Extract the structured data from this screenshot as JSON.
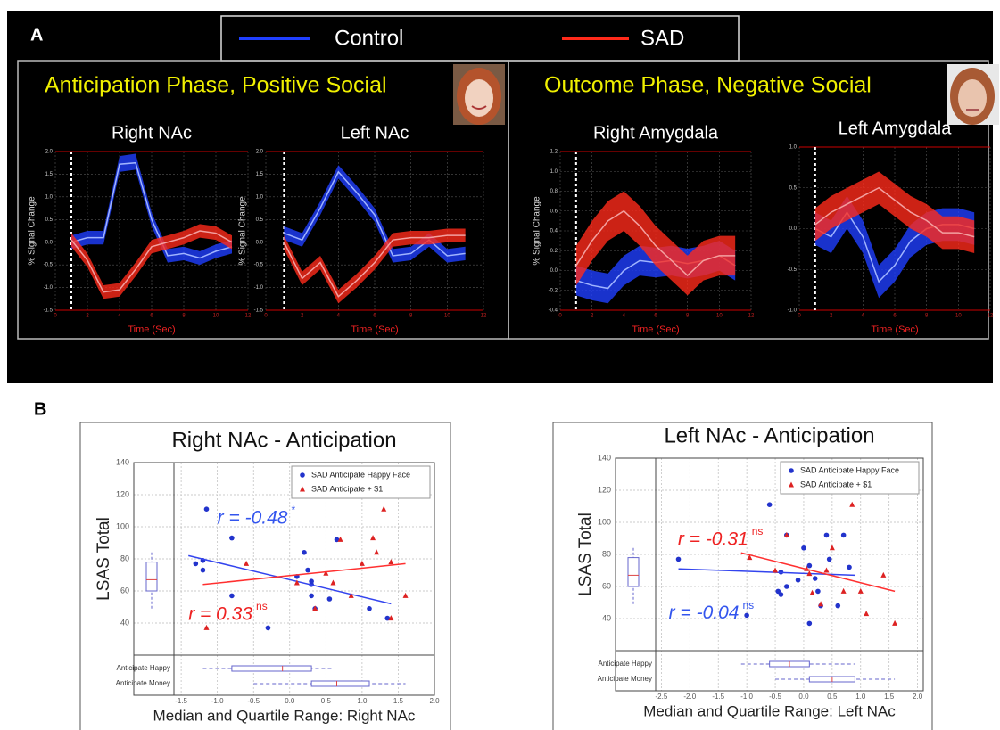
{
  "panel_labels": [
    "A",
    "B"
  ],
  "legend": [
    {
      "name": "Control",
      "color": "#1f3fff"
    },
    {
      "name": "SAD",
      "color": "#ff2a1a"
    }
  ],
  "group_titles": [
    "Anticipation Phase, Positive Social",
    "Outcome Phase, Negative Social"
  ],
  "chart_data": [
    {
      "type": "line",
      "title": "Right NAc",
      "xlabel": "Time (Sec)",
      "ylabel": "% Signal Change",
      "x": [
        1,
        2,
        3,
        4,
        5,
        6,
        7,
        8,
        9,
        10,
        11
      ],
      "xlim": [
        0,
        12
      ],
      "xticks": [
        0,
        2,
        4,
        6,
        8,
        10,
        12
      ],
      "ylim": [
        -1.5,
        2
      ],
      "yticks": [
        -1.5,
        {
          "value": -1,
          "label": "-1.0"
        },
        -0.5,
        {
          "value": 0,
          "label": "0.0"
        },
        0.5,
        {
          "value": 1,
          "label": "1.0"
        },
        1.5,
        {
          "value": 2,
          "label": "2.0"
        }
      ],
      "series": [
        {
          "color": "#1f3fff",
          "values": [
            0.0,
            0.1,
            0.1,
            1.72,
            1.75,
            0.5,
            -0.3,
            -0.25,
            -0.35,
            -0.2,
            -0.1
          ],
          "lower": [
            -0.15,
            -0.05,
            -0.05,
            1.55,
            1.6,
            0.35,
            -0.45,
            -0.4,
            -0.5,
            -0.35,
            -0.25
          ],
          "upper": [
            0.15,
            0.25,
            0.25,
            1.9,
            1.95,
            0.65,
            -0.15,
            -0.1,
            -0.2,
            -0.05,
            0.05
          ]
        },
        {
          "color": "#ff2a1a",
          "values": [
            0.05,
            -0.4,
            -1.1,
            -1.05,
            -0.6,
            -0.1,
            0.0,
            0.1,
            0.25,
            0.2,
            0.0
          ],
          "lower": [
            -0.1,
            -0.55,
            -1.25,
            -1.2,
            -0.75,
            -0.25,
            -0.15,
            -0.05,
            0.1,
            0.05,
            -0.15
          ],
          "upper": [
            0.2,
            -0.25,
            -0.95,
            -0.9,
            -0.45,
            0.05,
            0.15,
            0.25,
            0.4,
            0.35,
            0.15
          ]
        }
      ]
    },
    {
      "type": "line",
      "title": "Left NAc",
      "xlabel": "Time (Sec)",
      "ylabel": "% Signal Change",
      "x": [
        1,
        2,
        3,
        4,
        5,
        6,
        7,
        8,
        9,
        10,
        11
      ],
      "xlim": [
        0,
        12
      ],
      "xticks": [
        0,
        2,
        4,
        6,
        8,
        10,
        12
      ],
      "ylim": [
        -1.5,
        2
      ],
      "yticks": [
        -1.5,
        {
          "value": -1,
          "label": "-1.0"
        },
        -0.5,
        {
          "value": 0,
          "label": "0.0"
        },
        0.5,
        {
          "value": 1,
          "label": "1.0"
        },
        1.5,
        {
          "value": 2,
          "label": "2.0"
        }
      ],
      "series": [
        {
          "color": "#1f3fff",
          "values": [
            0.2,
            0.05,
            0.75,
            1.55,
            1.1,
            0.6,
            -0.3,
            -0.25,
            0.05,
            -0.3,
            -0.25
          ],
          "lower": [
            0.05,
            -0.1,
            0.6,
            1.4,
            0.95,
            0.45,
            -0.45,
            -0.4,
            -0.1,
            -0.45,
            -0.4
          ],
          "upper": [
            0.35,
            0.2,
            0.9,
            1.7,
            1.25,
            0.75,
            -0.15,
            -0.1,
            0.2,
            -0.15,
            -0.1
          ]
        },
        {
          "color": "#ff2a1a",
          "values": [
            0.0,
            -0.8,
            -0.45,
            -1.2,
            -0.85,
            -0.45,
            0.05,
            0.1,
            0.1,
            0.15,
            0.15
          ],
          "lower": [
            -0.15,
            -0.95,
            -0.6,
            -1.35,
            -1.0,
            -0.6,
            -0.1,
            -0.05,
            -0.05,
            0.0,
            0.0
          ],
          "upper": [
            0.15,
            -0.65,
            -0.3,
            -1.05,
            -0.7,
            -0.3,
            0.2,
            0.25,
            0.25,
            0.3,
            0.3
          ]
        }
      ]
    },
    {
      "type": "line",
      "title": "Right Amygdala",
      "xlabel": "Time (Sec)",
      "ylabel": "% Signal Change",
      "x": [
        1,
        2,
        3,
        4,
        5,
        6,
        7,
        8,
        9,
        10,
        11
      ],
      "xlim": [
        0,
        12
      ],
      "xticks": [
        0,
        2,
        4,
        6,
        8,
        10,
        12
      ],
      "ylim": [
        -0.4,
        1.2
      ],
      "yticks": [
        -0.4,
        -0.2,
        {
          "value": 0,
          "label": "0.0"
        },
        0.2,
        0.4,
        0.6,
        0.8,
        {
          "value": 1,
          "label": "1.0"
        },
        1.2
      ],
      "series": [
        {
          "color": "#1f3fff",
          "values": [
            -0.1,
            -0.15,
            -0.18,
            0.0,
            0.1,
            0.08,
            0.1,
            0.07,
            0.1,
            0.15,
            0.05
          ],
          "lower": [
            -0.25,
            -0.3,
            -0.33,
            -0.15,
            -0.05,
            -0.07,
            -0.05,
            -0.08,
            -0.05,
            0.0,
            -0.1
          ],
          "upper": [
            0.05,
            0.0,
            -0.03,
            0.15,
            0.25,
            0.23,
            0.25,
            0.22,
            0.25,
            0.3,
            0.2
          ]
        },
        {
          "color": "#ff2a1a",
          "values": [
            0.05,
            0.3,
            0.5,
            0.6,
            0.45,
            0.25,
            0.1,
            -0.05,
            0.1,
            0.15,
            0.15
          ],
          "lower": [
            -0.15,
            0.1,
            0.3,
            0.4,
            0.25,
            0.05,
            -0.1,
            -0.25,
            -0.1,
            -0.05,
            -0.05
          ],
          "upper": [
            0.25,
            0.5,
            0.7,
            0.8,
            0.65,
            0.45,
            0.3,
            0.15,
            0.3,
            0.35,
            0.35
          ]
        }
      ]
    },
    {
      "type": "line",
      "title": "Left Amygdala",
      "xlabel": "Time (Sec)",
      "x": [
        1,
        2,
        3,
        4,
        5,
        6,
        7,
        8,
        9,
        10,
        11
      ],
      "xlim": [
        0,
        12
      ],
      "xticks": [
        0,
        2,
        4,
        6,
        8,
        10,
        12
      ],
      "ylim": [
        -1,
        1
      ],
      "yticks": [
        {
          "value": -1,
          "label": "-1.0"
        },
        -0.5,
        {
          "value": 0,
          "label": "0.0"
        },
        0.5,
        {
          "value": 1,
          "label": "1.0"
        }
      ],
      "series": [
        {
          "color": "#1f3fff",
          "values": [
            0.0,
            -0.1,
            0.2,
            -0.1,
            -0.65,
            -0.45,
            -0.15,
            0.0,
            0.05,
            0.05,
            0.0
          ],
          "lower": [
            -0.2,
            -0.3,
            0.0,
            -0.3,
            -0.85,
            -0.65,
            -0.35,
            -0.2,
            -0.15,
            -0.15,
            -0.2
          ],
          "upper": [
            0.2,
            0.1,
            0.4,
            0.1,
            -0.45,
            -0.25,
            0.05,
            0.2,
            0.25,
            0.25,
            0.2
          ]
        },
        {
          "color": "#ff2a1a",
          "values": [
            0.05,
            0.2,
            0.3,
            0.4,
            0.5,
            0.35,
            0.2,
            0.1,
            -0.05,
            -0.05,
            -0.1
          ],
          "lower": [
            -0.15,
            0.0,
            0.1,
            0.2,
            0.3,
            0.15,
            0.0,
            -0.1,
            -0.25,
            -0.25,
            -0.3
          ],
          "upper": [
            0.25,
            0.4,
            0.5,
            0.6,
            0.7,
            0.55,
            0.4,
            0.3,
            0.15,
            0.15,
            0.1
          ]
        }
      ]
    },
    {
      "type": "scatter",
      "title": "Right NAc - Anticipation",
      "xlabel": "Median and Quartile Range: Right NAc",
      "ylabel": "LSAS Total",
      "xlim": [
        -1.6,
        2.0
      ],
      "xticks": [
        -1.5,
        {
          "value": -1,
          "label": "-1.0"
        },
        -0.5,
        {
          "value": 0,
          "label": "0.0"
        },
        0.5,
        {
          "value": 1,
          "label": "1.0"
        },
        1.5,
        {
          "value": 2,
          "label": "2.0"
        }
      ],
      "ylim": [
        20,
        140
      ],
      "yticks": [
        40,
        60,
        80,
        100,
        120,
        140
      ],
      "grid": true,
      "legend": "upper right",
      "series": [
        {
          "name": "SAD Anticipate Happy Face",
          "color": "#2233cc",
          "marker": "circle",
          "x": [
            -1.3,
            -1.15,
            -1.2,
            -1.2,
            -0.8,
            -0.8,
            -0.3,
            0.1,
            0.2,
            0.25,
            0.3,
            0.3,
            0.35,
            0.3,
            0.55,
            0.65,
            1.1,
            1.35
          ],
          "y": [
            77,
            111,
            79,
            73,
            93,
            57,
            37,
            69,
            84,
            73,
            57,
            64,
            49,
            66,
            55,
            92,
            49,
            43
          ],
          "fit": {
            "x": [
              -1.4,
              1.4
            ],
            "y": [
              82,
              52
            ]
          },
          "box_label": "Anticipate Happy",
          "box": {
            "whislo": -1.2,
            "q1": -0.8,
            "med": -0.1,
            "q3": 0.3,
            "whishi": 0.6
          }
        },
        {
          "name": "SAD Anticipate + $1",
          "color": "#dd2222",
          "marker": "triangle",
          "x": [
            -1.15,
            -0.6,
            0.1,
            0.35,
            0.5,
            0.6,
            0.7,
            0.85,
            1.0,
            1.15,
            1.2,
            1.3,
            1.4,
            1.4,
            1.6
          ],
          "y": [
            37,
            77,
            65,
            49,
            71,
            65,
            92,
            57,
            77,
            93,
            84,
            111,
            43,
            78,
            57
          ],
          "fit": {
            "x": [
              -1.2,
              1.6
            ],
            "y": [
              64,
              77
            ]
          },
          "box_label": "Anticipate Money",
          "box": {
            "whislo": -0.5,
            "q1": 0.3,
            "med": 0.65,
            "q3": 1.1,
            "whishi": 1.6
          }
        }
      ],
      "y_box": {
        "whislo": 49,
        "q1": 60,
        "med": 67,
        "q3": 78,
        "whishi": 84
      },
      "annotations": [
        {
          "text": "r = -0.48",
          "sup": "*",
          "color": "#3355ee"
        },
        {
          "text": "r = 0.33",
          "sup": "ns",
          "color": "#ee2222"
        }
      ]
    },
    {
      "type": "scatter",
      "title": "Left NAc - Anticipation",
      "xlabel": "Median and Quartile Range: Left NAc",
      "ylabel": "LSAS Total",
      "xlim": [
        -2.6,
        2.1
      ],
      "xticks": [
        -2.5,
        {
          "value": -2,
          "label": "-2.0"
        },
        -1.5,
        {
          "value": -1,
          "label": "-1.0"
        },
        -0.5,
        {
          "value": 0,
          "label": "0.0"
        },
        0.5,
        {
          "value": 1,
          "label": "1.0"
        },
        1.5,
        {
          "value": 2,
          "label": "2.0"
        }
      ],
      "ylim": [
        20,
        140
      ],
      "yticks": [
        40,
        60,
        80,
        100,
        120,
        140
      ],
      "grid": true,
      "legend": "upper right",
      "series": [
        {
          "name": "SAD Anticipate Happy Face",
          "color": "#2233cc",
          "marker": "circle",
          "x": [
            -2.2,
            -1.0,
            -0.6,
            -0.45,
            -0.4,
            -0.4,
            -0.3,
            -0.3,
            -0.1,
            0.0,
            0.1,
            0.1,
            0.2,
            0.25,
            0.3,
            0.4,
            0.45,
            0.6,
            0.7,
            0.8
          ],
          "y": [
            77,
            42,
            111,
            57,
            69,
            55,
            92,
            60,
            64,
            84,
            37,
            73,
            65,
            57,
            48,
            92,
            77,
            48,
            92,
            72
          ],
          "fit": {
            "x": [
              -2.2,
              0.9
            ],
            "y": [
              71,
              67
            ]
          },
          "box_label": "Anticipate Happy",
          "box": {
            "whislo": -1.1,
            "q1": -0.6,
            "med": -0.25,
            "q3": 0.1,
            "whishi": 0.9
          }
        },
        {
          "name": "SAD Anticipate + $1",
          "color": "#dd2222",
          "marker": "triangle",
          "x": [
            -0.95,
            -0.5,
            -0.3,
            0.05,
            0.1,
            0.15,
            0.3,
            0.4,
            0.5,
            0.7,
            0.85,
            1.0,
            1.1,
            1.4,
            1.6
          ],
          "y": [
            78,
            70,
            92,
            71,
            68,
            56,
            49,
            70,
            84,
            57,
            111,
            57,
            43,
            67,
            37
          ],
          "fit": {
            "x": [
              -1.1,
              1.6
            ],
            "y": [
              81,
              57
            ]
          },
          "box_label": "Anticipate Money",
          "box": {
            "whislo": -0.5,
            "q1": 0.1,
            "med": 0.5,
            "q3": 0.9,
            "whishi": 1.6
          }
        }
      ],
      "y_box": {
        "whislo": 49,
        "q1": 60,
        "med": 67,
        "q3": 78,
        "whishi": 84
      },
      "annotations": [
        {
          "text": "r = -0.31",
          "sup": "ns",
          "color": "#ee2222"
        },
        {
          "text": "r = -0.04",
          "sup": "ns",
          "color": "#3355ee"
        }
      ]
    }
  ]
}
